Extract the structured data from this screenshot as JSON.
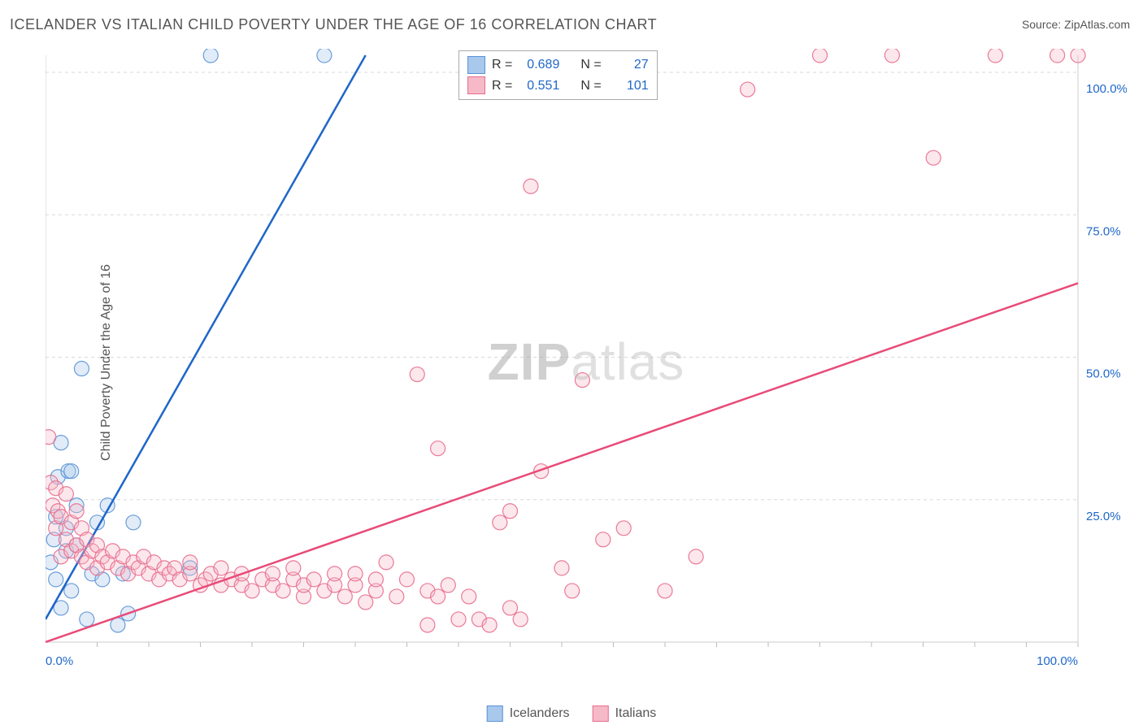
{
  "title": "ICELANDER VS ITALIAN CHILD POVERTY UNDER THE AGE OF 16 CORRELATION CHART",
  "source_label": "Source:",
  "source_value": "ZipAtlas.com",
  "ylabel": "Child Poverty Under the Age of 16",
  "watermark_part1": "ZIP",
  "watermark_part2": "atlas",
  "chart": {
    "type": "scatter",
    "xlim": [
      0,
      100
    ],
    "ylim": [
      0,
      103
    ],
    "x_axis_min_label": "0.0%",
    "x_axis_max_label": "100.0%",
    "ytick_step": 25,
    "y_tick_labels": [
      "25.0%",
      "50.0%",
      "75.0%",
      "100.0%"
    ],
    "grid_color": "#d8d8d8",
    "axis_color": "#cccccc",
    "tick_color": "#bbbbbb",
    "background_color": "#ffffff",
    "marker_radius": 9,
    "marker_fill_opacity": 0.35,
    "marker_stroke_opacity": 0.9,
    "trendline_width": 2.5,
    "series": [
      {
        "name": "Icelanders",
        "color_fill": "#a8c8ec",
        "color_stroke": "#5a93d6",
        "trend_color": "#1f66c9",
        "R": "0.689",
        "N": "27",
        "trend": {
          "x1": 0,
          "y1": 4,
          "x2": 31,
          "y2": 103
        },
        "points": [
          [
            0.5,
            14
          ],
          [
            0.8,
            18
          ],
          [
            1,
            11
          ],
          [
            1,
            22
          ],
          [
            1.2,
            29
          ],
          [
            1.5,
            6
          ],
          [
            1.5,
            35
          ],
          [
            2,
            16
          ],
          [
            2,
            20
          ],
          [
            2.2,
            30
          ],
          [
            2.5,
            9
          ],
          [
            2.5,
            30
          ],
          [
            3,
            17
          ],
          [
            3,
            24
          ],
          [
            3.5,
            48
          ],
          [
            4,
            4
          ],
          [
            4.5,
            12
          ],
          [
            5,
            21
          ],
          [
            5.5,
            11
          ],
          [
            6,
            24
          ],
          [
            7,
            3
          ],
          [
            7.5,
            12
          ],
          [
            8,
            5
          ],
          [
            8.5,
            21
          ],
          [
            14,
            13
          ],
          [
            16,
            103
          ],
          [
            27,
            103
          ]
        ]
      },
      {
        "name": "Italians",
        "color_fill": "#f5b9c8",
        "color_stroke": "#e86d8d",
        "trend_color": "#e84b78",
        "R": "0.551",
        "N": "101",
        "trend": {
          "x1": 0,
          "y1": 0,
          "x2": 100,
          "y2": 63
        },
        "points": [
          [
            0.3,
            36
          ],
          [
            0.5,
            28
          ],
          [
            0.7,
            24
          ],
          [
            1,
            20
          ],
          [
            1,
            27
          ],
          [
            1.2,
            23
          ],
          [
            1.5,
            15
          ],
          [
            1.5,
            22
          ],
          [
            2,
            18
          ],
          [
            2,
            26
          ],
          [
            2.5,
            16
          ],
          [
            2.5,
            21
          ],
          [
            3,
            17
          ],
          [
            3,
            23
          ],
          [
            3.5,
            15
          ],
          [
            3.5,
            20
          ],
          [
            4,
            14
          ],
          [
            4,
            18
          ],
          [
            4.5,
            16
          ],
          [
            5,
            13
          ],
          [
            5,
            17
          ],
          [
            5.5,
            15
          ],
          [
            6,
            14
          ],
          [
            6.5,
            16
          ],
          [
            7,
            13
          ],
          [
            7.5,
            15
          ],
          [
            8,
            12
          ],
          [
            8.5,
            14
          ],
          [
            9,
            13
          ],
          [
            9.5,
            15
          ],
          [
            10,
            12
          ],
          [
            10.5,
            14
          ],
          [
            11,
            11
          ],
          [
            11.5,
            13
          ],
          [
            12,
            12
          ],
          [
            12.5,
            13
          ],
          [
            13,
            11
          ],
          [
            14,
            12
          ],
          [
            14,
            14
          ],
          [
            15,
            10
          ],
          [
            15.5,
            11
          ],
          [
            16,
            12
          ],
          [
            17,
            10
          ],
          [
            17,
            13
          ],
          [
            18,
            11
          ],
          [
            19,
            10
          ],
          [
            19,
            12
          ],
          [
            20,
            9
          ],
          [
            21,
            11
          ],
          [
            22,
            10
          ],
          [
            22,
            12
          ],
          [
            23,
            9
          ],
          [
            24,
            11
          ],
          [
            24,
            13
          ],
          [
            25,
            8
          ],
          [
            25,
            10
          ],
          [
            26,
            11
          ],
          [
            27,
            9
          ],
          [
            28,
            10
          ],
          [
            28,
            12
          ],
          [
            29,
            8
          ],
          [
            30,
            10
          ],
          [
            30,
            12
          ],
          [
            31,
            7
          ],
          [
            32,
            9
          ],
          [
            32,
            11
          ],
          [
            33,
            14
          ],
          [
            34,
            8
          ],
          [
            35,
            11
          ],
          [
            36,
            47
          ],
          [
            37,
            9
          ],
          [
            37,
            3
          ],
          [
            38,
            8
          ],
          [
            38,
            34
          ],
          [
            39,
            10
          ],
          [
            40,
            4
          ],
          [
            41,
            8
          ],
          [
            42,
            4
          ],
          [
            43,
            3
          ],
          [
            44,
            21
          ],
          [
            45,
            6
          ],
          [
            45,
            23
          ],
          [
            46,
            4
          ],
          [
            47,
            80
          ],
          [
            48,
            30
          ],
          [
            50,
            13
          ],
          [
            51,
            9
          ],
          [
            52,
            46
          ],
          [
            54,
            18
          ],
          [
            56,
            20
          ],
          [
            60,
            9
          ],
          [
            63,
            15
          ],
          [
            68,
            97
          ],
          [
            75,
            103
          ],
          [
            82,
            103
          ],
          [
            86,
            85
          ],
          [
            92,
            103
          ],
          [
            98,
            103
          ],
          [
            100,
            103
          ]
        ]
      }
    ]
  },
  "legend_top": {
    "r_label": "R =",
    "n_label": "N ="
  },
  "bottom_legend": {
    "items": [
      "Icelanders",
      "Italians"
    ]
  }
}
